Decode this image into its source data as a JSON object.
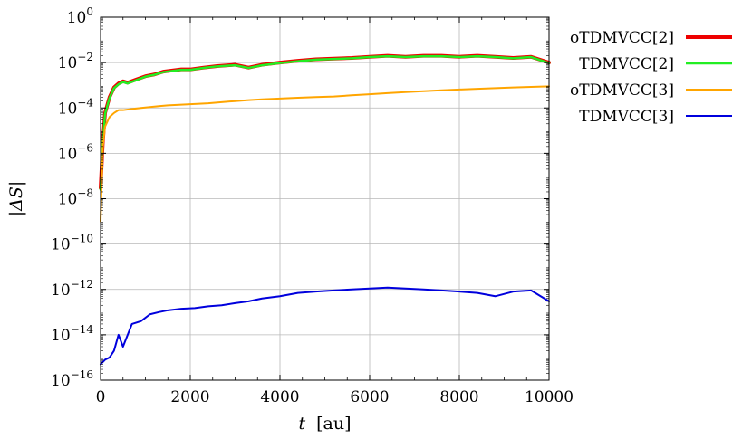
{
  "chart_data": {
    "type": "line",
    "title": "",
    "xlabel": {
      "var": "t",
      "unit": "[au]"
    },
    "ylabel": "|ΔS|",
    "xlim": [
      0,
      10000
    ],
    "ylim": [
      1e-16,
      1
    ],
    "yscale": "log",
    "grid": true,
    "legend_position": "outside-right",
    "x_ticks": [
      "0",
      "2000",
      "4000",
      "6000",
      "8000",
      "10000"
    ],
    "y_ticks": [
      {
        "base": "10",
        "exp": "0"
      },
      {
        "base": "10",
        "exp": "−2"
      },
      {
        "base": "10",
        "exp": "−4"
      },
      {
        "base": "10",
        "exp": "−6"
      },
      {
        "base": "10",
        "exp": "−8"
      },
      {
        "base": "10",
        "exp": "−10"
      },
      {
        "base": "10",
        "exp": "−12"
      },
      {
        "base": "10",
        "exp": "−14"
      },
      {
        "base": "10",
        "exp": "−16"
      }
    ],
    "series": [
      {
        "name": "oTDMVCC[2]",
        "color": "#ee0000",
        "x": [
          0,
          50,
          100,
          200,
          300,
          400,
          500,
          600,
          800,
          1000,
          1200,
          1400,
          1600,
          1800,
          2000,
          2300,
          2600,
          3000,
          3300,
          3600,
          4000,
          4400,
          4800,
          5200,
          5600,
          6000,
          6400,
          6800,
          7200,
          7600,
          8000,
          8400,
          8800,
          9200,
          9600,
          10000
        ],
        "y": [
          3e-08,
          3e-06,
          6e-05,
          0.0003,
          0.0008,
          0.0012,
          0.0015,
          0.0013,
          0.0018,
          0.0025,
          0.003,
          0.004,
          0.0045,
          0.005,
          0.005,
          0.006,
          0.007,
          0.008,
          0.006,
          0.008,
          0.01,
          0.012,
          0.014,
          0.015,
          0.016,
          0.018,
          0.02,
          0.018,
          0.02,
          0.02,
          0.018,
          0.02,
          0.018,
          0.016,
          0.018,
          0.01
        ]
      },
      {
        "name": "TDMVCC[2]",
        "color": "#22ee22",
        "x": [
          0,
          50,
          100,
          200,
          300,
          400,
          500,
          600,
          800,
          1000,
          1200,
          1400,
          1600,
          1800,
          2000,
          2300,
          2600,
          3000,
          3300,
          3600,
          4000,
          4400,
          4800,
          5200,
          5600,
          6000,
          6400,
          6800,
          7200,
          7600,
          8000,
          8400,
          8800,
          9200,
          9600,
          10000
        ],
        "y": [
          2.5e-08,
          2.8e-06,
          5.5e-05,
          0.00028,
          0.00075,
          0.0011,
          0.0014,
          0.0012,
          0.0017,
          0.0024,
          0.0029,
          0.0038,
          0.0043,
          0.0048,
          0.0048,
          0.0058,
          0.0068,
          0.0076,
          0.0058,
          0.0076,
          0.0095,
          0.0115,
          0.0135,
          0.0145,
          0.0155,
          0.0175,
          0.019,
          0.0175,
          0.019,
          0.019,
          0.0175,
          0.019,
          0.0175,
          0.0155,
          0.0175,
          0.0095
        ]
      },
      {
        "name": "oTDMVCC[3]",
        "color": "#ffa500",
        "x": [
          0,
          50,
          100,
          200,
          300,
          400,
          500,
          700,
          900,
          1100,
          1300,
          1500,
          1800,
          2100,
          2400,
          2700,
          3000,
          3300,
          3600,
          4000,
          4400,
          4800,
          5200,
          5600,
          6000,
          6400,
          6800,
          7200,
          7600,
          8000,
          8400,
          8800,
          9200,
          9600,
          10000
        ],
        "y": [
          1e-09,
          2e-06,
          1.5e-05,
          4e-05,
          6e-05,
          8e-05,
          8e-05,
          9e-05,
          0.0001,
          0.00011,
          0.00012,
          0.00013,
          0.00014,
          0.00015,
          0.00016,
          0.00018,
          0.0002,
          0.00022,
          0.00024,
          0.00026,
          0.00028,
          0.0003,
          0.00032,
          0.00036,
          0.0004,
          0.00045,
          0.0005,
          0.00055,
          0.0006,
          0.00065,
          0.0007,
          0.00075,
          0.0008,
          0.00085,
          0.0009
        ]
      },
      {
        "name": "TDMVCC[3]",
        "color": "#0000dd",
        "x": [
          0,
          100,
          200,
          300,
          400,
          500,
          700,
          900,
          1100,
          1300,
          1500,
          1800,
          2100,
          2400,
          2700,
          3000,
          3300,
          3600,
          4000,
          4400,
          4800,
          5200,
          5600,
          6000,
          6400,
          6800,
          7200,
          7600,
          8000,
          8400,
          8800,
          9200,
          9600,
          10000
        ],
        "y": [
          5e-16,
          8e-16,
          1e-15,
          2e-15,
          1e-14,
          3e-15,
          3e-14,
          4e-14,
          8e-14,
          1e-13,
          1.2e-13,
          1.4e-13,
          1.5e-13,
          1.8e-13,
          2e-13,
          2.5e-13,
          3e-13,
          4e-13,
          5e-13,
          7e-13,
          8e-13,
          9e-13,
          1e-12,
          1.1e-12,
          1.2e-12,
          1.1e-12,
          1e-12,
          9e-13,
          8e-13,
          7e-13,
          5e-13,
          8e-13,
          9e-13,
          3e-13
        ]
      }
    ]
  }
}
